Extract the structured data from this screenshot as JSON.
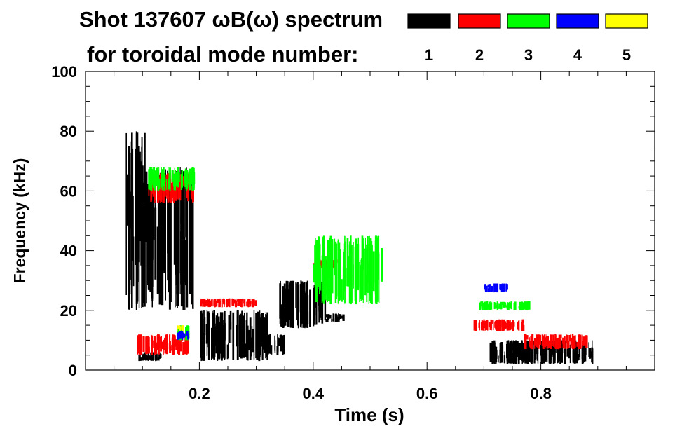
{
  "chart_data": {
    "type": "heatmap",
    "title_line1": "Shot 137607 ωB(ω) spectrum",
    "title_line2": "for toroidal mode number:",
    "xlabel": "Time (s)",
    "ylabel": "Frequency (kHz)",
    "xlim": [
      0.0,
      1.0
    ],
    "ylim": [
      0,
      100
    ],
    "x_ticks": [
      0.2,
      0.4,
      0.6,
      0.8
    ],
    "x_tick_labels": [
      "0.2",
      "0.4",
      "0.6",
      "0.8"
    ],
    "y_ticks": [
      0,
      20,
      40,
      60,
      80,
      100
    ],
    "y_tick_labels": [
      "0",
      "20",
      "40",
      "60",
      "80",
      "100"
    ],
    "legend": [
      {
        "label": "1",
        "color": "#000000"
      },
      {
        "label": "2",
        "color": "#ff0000"
      },
      {
        "label": "3",
        "color": "#00ff00"
      },
      {
        "label": "4",
        "color": "#0000ff"
      },
      {
        "label": "5",
        "color": "#ffff00"
      }
    ],
    "series": [
      {
        "name": "n=1",
        "color": "#000000",
        "regions": [
          {
            "t0": 0.07,
            "t1": 0.11,
            "f0": 20,
            "f1": 80
          },
          {
            "t0": 0.11,
            "t1": 0.19,
            "f0": 20,
            "f1": 68
          },
          {
            "t0": 0.09,
            "t1": 0.13,
            "f0": 3,
            "f1": 6
          },
          {
            "t0": 0.2,
            "t1": 0.32,
            "f0": 3,
            "f1": 20
          },
          {
            "t0": 0.32,
            "t1": 0.35,
            "f0": 5,
            "f1": 12
          },
          {
            "t0": 0.34,
            "t1": 0.42,
            "f0": 14,
            "f1": 30
          },
          {
            "t0": 0.42,
            "t1": 0.455,
            "f0": 16,
            "f1": 19
          },
          {
            "t0": 0.71,
            "t1": 0.89,
            "f0": 2,
            "f1": 10
          }
        ]
      },
      {
        "name": "n=2",
        "color": "#ff0000",
        "regions": [
          {
            "t0": 0.11,
            "t1": 0.19,
            "f0": 56,
            "f1": 66
          },
          {
            "t0": 0.2,
            "t1": 0.3,
            "f0": 21,
            "f1": 24
          },
          {
            "t0": 0.4,
            "t1": 0.44,
            "f0": 34,
            "f1": 37
          },
          {
            "t0": 0.68,
            "t1": 0.77,
            "f0": 13,
            "f1": 17
          },
          {
            "t0": 0.77,
            "t1": 0.88,
            "f0": 7,
            "f1": 12
          },
          {
            "t0": 0.09,
            "t1": 0.18,
            "f0": 5,
            "f1": 12
          }
        ]
      },
      {
        "name": "n=3",
        "color": "#00ff00",
        "regions": [
          {
            "t0": 0.11,
            "t1": 0.19,
            "f0": 60,
            "f1": 68
          },
          {
            "t0": 0.4,
            "t1": 0.52,
            "f0": 22,
            "f1": 45
          },
          {
            "t0": 0.69,
            "t1": 0.78,
            "f0": 20,
            "f1": 23
          },
          {
            "t0": 0.16,
            "t1": 0.18,
            "f0": 10,
            "f1": 15
          }
        ]
      },
      {
        "name": "n=4",
        "color": "#0000ff",
        "regions": [
          {
            "t0": 0.7,
            "t1": 0.74,
            "f0": 26,
            "f1": 29
          },
          {
            "t0": 0.16,
            "t1": 0.18,
            "f0": 10,
            "f1": 13
          }
        ]
      },
      {
        "name": "n=5",
        "color": "#ffff00",
        "regions": [
          {
            "t0": 0.16,
            "t1": 0.17,
            "f0": 13,
            "f1": 15
          }
        ]
      }
    ]
  }
}
